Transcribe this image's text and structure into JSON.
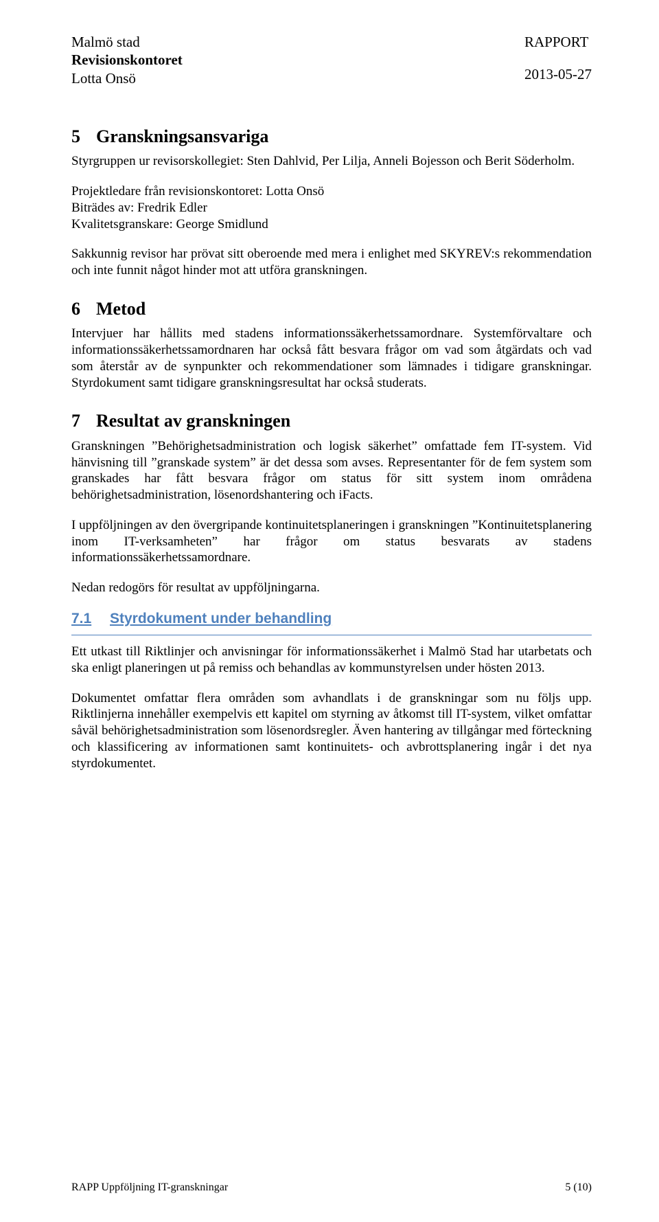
{
  "header": {
    "org": "Malmö stad",
    "dept": "Revisionskontoret",
    "name": "Lotta Onsö",
    "type": "RAPPORT",
    "date": "2013-05-27"
  },
  "sec5": {
    "num": "5",
    "title": "Granskningsansvariga",
    "p1": "Styrgruppen ur revisorskollegiet: Sten Dahlvid, Per Lilja, Anneli Bojesson och Berit Söderholm.",
    "p2a": "Projektledare från revisionskontoret: Lotta Onsö",
    "p2b": "Biträdes av: Fredrik Edler",
    "p2c": "Kvalitetsgranskare: George Smidlund",
    "p3": "Sakkunnig revisor har prövat sitt oberoende med mera i enlighet med SKYREV:s rekommendation och inte funnit något hinder mot att utföra granskningen."
  },
  "sec6": {
    "num": "6",
    "title": "Metod",
    "p1": "Intervjuer har hållits med stadens informationssäkerhetssamordnare. Systemförvaltare och informationssäkerhetssamordnaren har också fått besvara frågor om vad som åtgärdats och vad som återstår av de synpunkter och rekommendationer som lämnades i tidigare granskningar. Styrdokument samt tidigare granskningsresultat har också studerats."
  },
  "sec7": {
    "num": "7",
    "title": "Resultat av granskningen",
    "p1": "Granskningen ”Behörighetsadministration och logisk säkerhet” omfattade fem IT-system. Vid hänvisning till ”granskade system” är det dessa som avses. Representanter för de fem system som granskades har fått besvara frågor om status för sitt system inom områdena behörighetsadministration, lösenordshantering och iFacts.",
    "p2": "I uppföljningen av den övergripande kontinuitetsplaneringen i granskningen ”Kontinuitetsplanering inom IT-verksamheten” har frågor om status besvarats av stadens informationssäkerhetssamordnare.",
    "p3": "Nedan redogörs för resultat av uppföljningarna.",
    "sub": {
      "num": "7.1",
      "title": "Styrdokument under behandling",
      "p1": "Ett utkast till Riktlinjer och anvisningar för informationssäkerhet i Malmö Stad har utarbetats och ska enligt planeringen ut på remiss och behandlas av kommunstyrelsen under hösten 2013.",
      "p2": "Dokumentet omfattar flera områden som avhandlats i de granskningar som nu följs upp. Riktlinjerna innehåller exempelvis ett kapitel om styrning av åtkomst till IT-system, vilket omfattar såväl behörighetsadministration som lösenordsregler. Även hantering av tillgångar med förteckning och klassificering av informationen samt kontinuitets- och avbrottsplanering ingår i det nya styrdokumentet."
    }
  },
  "footer": {
    "left": "RAPP Uppföljning IT-granskningar",
    "right": "5 (10)"
  }
}
